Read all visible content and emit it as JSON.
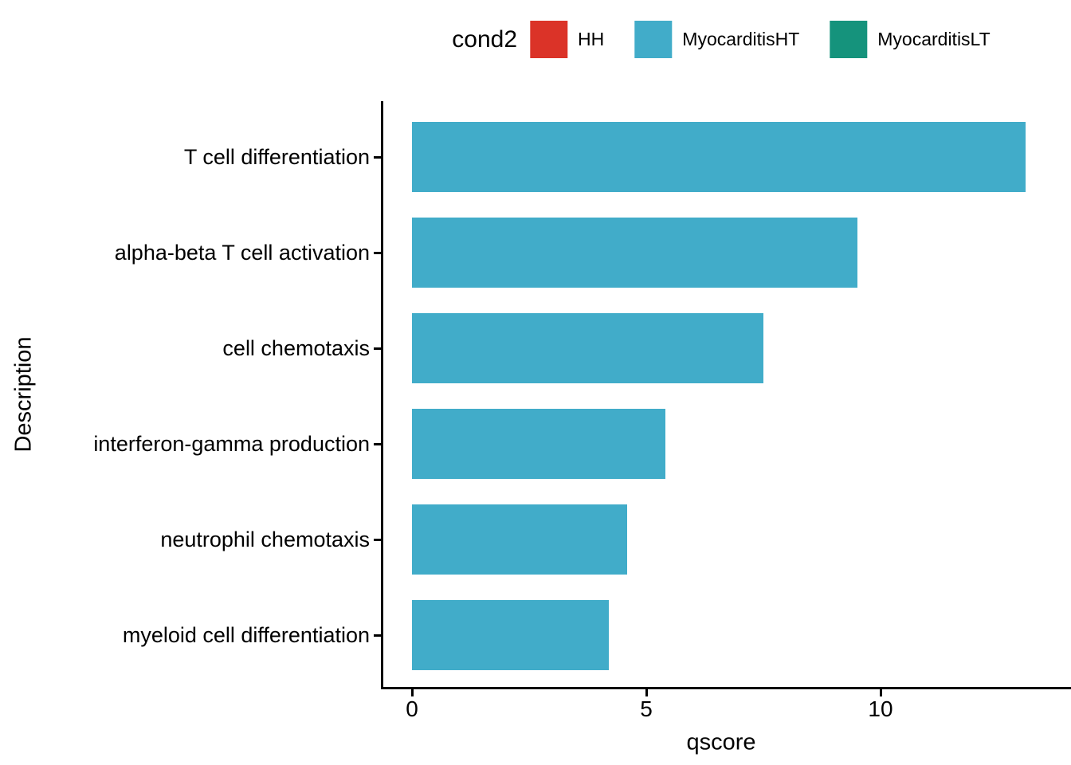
{
  "legend": {
    "title": "cond2",
    "items": [
      {
        "label": "HH",
        "color": "#DB3328"
      },
      {
        "label": "MyocarditisHT",
        "color": "#41ACC9"
      },
      {
        "label": "MyocarditisLT",
        "color": "#15937C"
      }
    ]
  },
  "chart_data": {
    "type": "bar",
    "orientation": "horizontal",
    "title": "",
    "xlabel": "qscore",
    "ylabel": "Description",
    "categories": [
      "T cell differentiation",
      "alpha-beta T cell activation",
      "cell chemotaxis",
      "interferon-gamma production",
      "neutrophil chemotaxis",
      "myeloid cell differentiation"
    ],
    "series": [
      {
        "name": "MyocarditisHT",
        "color": "#41ACC9",
        "values": [
          13.1,
          9.5,
          7.5,
          5.4,
          4.6,
          4.2
        ]
      }
    ],
    "x_ticks": [
      0,
      5,
      10
    ],
    "xlim": [
      0,
      14
    ],
    "grid": false,
    "legend_position": "top",
    "background": "#ffffff",
    "axis_color": "#000000"
  }
}
